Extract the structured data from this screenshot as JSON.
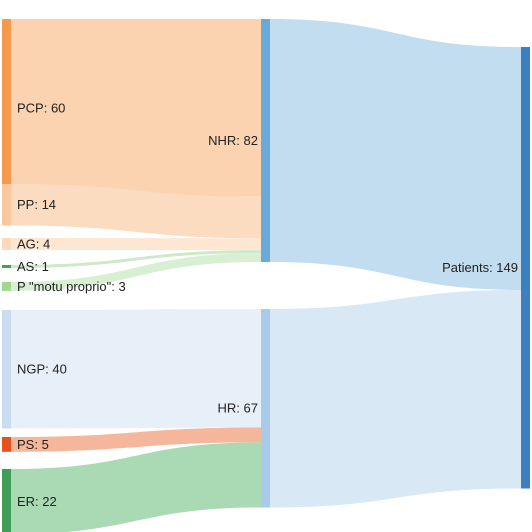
{
  "chart_data": {
    "type": "sankey",
    "nodes": [
      {
        "id": "PCP",
        "label": "PCP: 60",
        "value": 60,
        "color": "#f59a4d"
      },
      {
        "id": "PP",
        "label": "PP: 14",
        "value": 14,
        "color": "#fbc79c"
      },
      {
        "id": "AG",
        "label": "AG: 4",
        "value": 4,
        "color": "#fdd9bb"
      },
      {
        "id": "AS",
        "label": "AS: 1",
        "value": 1,
        "color": "#3fa34d"
      },
      {
        "id": "PMP",
        "label": "P \"motu proprio\": 3",
        "value": 3,
        "color": "#9fd98f"
      },
      {
        "id": "NGP",
        "label": "NGP: 40",
        "value": 40,
        "color": "#c9dcf0"
      },
      {
        "id": "PS",
        "label": "PS: 5",
        "value": 5,
        "color": "#e6501f"
      },
      {
        "id": "ER",
        "label": "ER: 22",
        "value": 22,
        "color": "#3f9e57"
      },
      {
        "id": "NHR",
        "label": "NHR: 82",
        "value": 82,
        "color": "#6aaad8"
      },
      {
        "id": "HR",
        "label": "HR: 67",
        "value": 67,
        "color": "#a9cbe9"
      },
      {
        "id": "Patients",
        "label": "Patients: 149",
        "value": 149,
        "color": "#3d7fbf"
      }
    ],
    "links": [
      {
        "source": "PCP",
        "target": "NHR",
        "value": 60,
        "color": "#fbd3b1"
      },
      {
        "source": "PP",
        "target": "NHR",
        "value": 14,
        "color": "#fcdcc1"
      },
      {
        "source": "AG",
        "target": "NHR",
        "value": 4,
        "color": "#fde6d2"
      },
      {
        "source": "AS",
        "target": "NHR",
        "value": 1,
        "color": "#cfe9c8"
      },
      {
        "source": "PMP",
        "target": "NHR",
        "value": 3,
        "color": "#d9efd3"
      },
      {
        "source": "NGP",
        "target": "HR",
        "value": 40,
        "color": "#e7eff9"
      },
      {
        "source": "PS",
        "target": "HR",
        "value": 5,
        "color": "#f4b79b"
      },
      {
        "source": "ER",
        "target": "HR",
        "value": 22,
        "color": "#a9dab4"
      },
      {
        "source": "NHR",
        "target": "Patients",
        "value": 82,
        "color": "#c3ddf0"
      },
      {
        "source": "HR",
        "target": "Patients",
        "value": 67,
        "color": "#d8e8f5"
      }
    ]
  }
}
